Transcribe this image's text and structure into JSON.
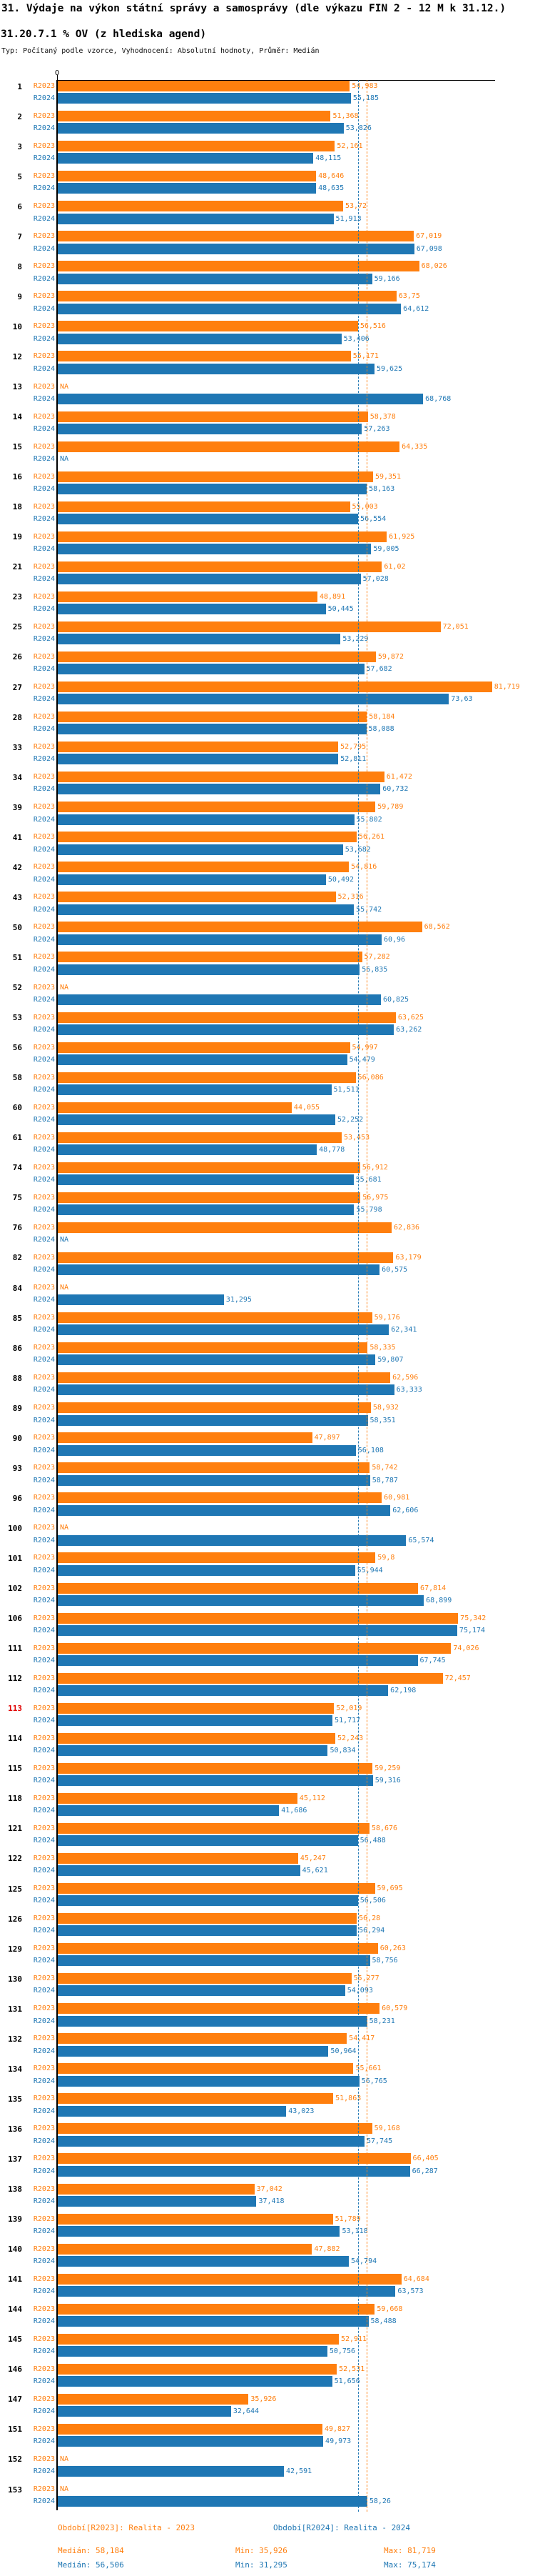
{
  "title": "31. Výdaje na výkon státní správy a samosprávy (dle výkazu FIN 2 - 12 M k 31.12.)",
  "subtitle": "31.20.7.1 % OV (z hlediska agend)",
  "meta_line": "Typ: Počítaný podle vzorce, Vyhodnocení: Absolutní hodnoty, Průměr: Medián",
  "axis": {
    "zero_label": "0"
  },
  "colors": {
    "r2023": "#ff7f0e",
    "r2024": "#1f77b4",
    "highlight_row": "#e00000",
    "axis": "#000000"
  },
  "na_label": "NA",
  "series_row_labels": {
    "r2023": "R2023",
    "r2024": "R2024"
  },
  "chart_data": {
    "type": "bar",
    "orientation": "horizontal",
    "x_axis": {
      "start_tick_label": "0",
      "value_format": "czech decimal comma"
    },
    "series_names": [
      "R2023",
      "R2024"
    ],
    "medians": {
      "r2023": 58.184,
      "r2024": 56.506
    },
    "stats": {
      "r2023": {
        "median": "58,184",
        "min": "35,926",
        "max": "81,719"
      },
      "r2024": {
        "median": "56,506",
        "min": "31,295",
        "max": "75,174"
      }
    },
    "highlighted_ids": [
      "113"
    ],
    "rows": [
      {
        "id": "1",
        "r2023": "54,983",
        "r2024": "55,185"
      },
      {
        "id": "2",
        "r2023": "51,368",
        "r2024": "53,826"
      },
      {
        "id": "3",
        "r2023": "52,161",
        "r2024": "48,115"
      },
      {
        "id": "5",
        "r2023": "48,646",
        "r2024": "48,635"
      },
      {
        "id": "6",
        "r2023": "53,72",
        "r2024": "51,913"
      },
      {
        "id": "7",
        "r2023": "67,019",
        "r2024": "67,098"
      },
      {
        "id": "8",
        "r2023": "68,026",
        "r2024": "59,166"
      },
      {
        "id": "9",
        "r2023": "63,75",
        "r2024": "64,612"
      },
      {
        "id": "10",
        "r2023": "56,516",
        "r2024": "53,406"
      },
      {
        "id": "12",
        "r2023": "55,171",
        "r2024": "59,625"
      },
      {
        "id": "13",
        "r2023": null,
        "r2024": "68,768"
      },
      {
        "id": "14",
        "r2023": "58,378",
        "r2024": "57,263"
      },
      {
        "id": "15",
        "r2023": "64,335",
        "r2024": null
      },
      {
        "id": "16",
        "r2023": "59,351",
        "r2024": "58,163"
      },
      {
        "id": "18",
        "r2023": "55,003",
        "r2024": "56,554"
      },
      {
        "id": "19",
        "r2023": "61,925",
        "r2024": "59,005"
      },
      {
        "id": "21",
        "r2023": "61,02",
        "r2024": "57,028"
      },
      {
        "id": "23",
        "r2023": "48,891",
        "r2024": "50,445"
      },
      {
        "id": "25",
        "r2023": "72,051",
        "r2024": "53,229"
      },
      {
        "id": "26",
        "r2023": "59,872",
        "r2024": "57,682"
      },
      {
        "id": "27",
        "r2023": "81,719",
        "r2024": "73,63"
      },
      {
        "id": "28",
        "r2023": "58,184",
        "r2024": "58,088"
      },
      {
        "id": "33",
        "r2023": "52,795",
        "r2024": "52,811"
      },
      {
        "id": "34",
        "r2023": "61,472",
        "r2024": "60,732"
      },
      {
        "id": "39",
        "r2023": "59,789",
        "r2024": "55,802"
      },
      {
        "id": "41",
        "r2023": "56,261",
        "r2024": "53,682"
      },
      {
        "id": "42",
        "r2023": "54,816",
        "r2024": "50,492"
      },
      {
        "id": "43",
        "r2023": "52,316",
        "r2024": "55,742"
      },
      {
        "id": "50",
        "r2023": "68,562",
        "r2024": "60,96"
      },
      {
        "id": "51",
        "r2023": "57,282",
        "r2024": "56,835"
      },
      {
        "id": "52",
        "r2023": null,
        "r2024": "60,825"
      },
      {
        "id": "53",
        "r2023": "63,625",
        "r2024": "63,262"
      },
      {
        "id": "56",
        "r2023": "54,997",
        "r2024": "54,479"
      },
      {
        "id": "58",
        "r2023": "56,086",
        "r2024": "51,511"
      },
      {
        "id": "60",
        "r2023": "44,055",
        "r2024": "52,252"
      },
      {
        "id": "61",
        "r2023": "53,453",
        "r2024": "48,778"
      },
      {
        "id": "74",
        "r2023": "56,912",
        "r2024": "55,681"
      },
      {
        "id": "75",
        "r2023": "56,975",
        "r2024": "55,798"
      },
      {
        "id": "76",
        "r2023": "62,836",
        "r2024": null
      },
      {
        "id": "82",
        "r2023": "63,179",
        "r2024": "60,575"
      },
      {
        "id": "84",
        "r2023": null,
        "r2024": "31,295"
      },
      {
        "id": "85",
        "r2023": "59,176",
        "r2024": "62,341"
      },
      {
        "id": "86",
        "r2023": "58,335",
        "r2024": "59,807"
      },
      {
        "id": "88",
        "r2023": "62,596",
        "r2024": "63,333"
      },
      {
        "id": "89",
        "r2023": "58,932",
        "r2024": "58,351"
      },
      {
        "id": "90",
        "r2023": "47,897",
        "r2024": "56,108"
      },
      {
        "id": "93",
        "r2023": "58,742",
        "r2024": "58,787"
      },
      {
        "id": "96",
        "r2023": "60,981",
        "r2024": "62,606"
      },
      {
        "id": "100",
        "r2023": null,
        "r2024": "65,574"
      },
      {
        "id": "101",
        "r2023": "59,8",
        "r2024": "55,944"
      },
      {
        "id": "102",
        "r2023": "67,814",
        "r2024": "68,899"
      },
      {
        "id": "106",
        "r2023": "75,342",
        "r2024": "75,174"
      },
      {
        "id": "111",
        "r2023": "74,026",
        "r2024": "67,745"
      },
      {
        "id": "112",
        "r2023": "72,457",
        "r2024": "62,198"
      },
      {
        "id": "113",
        "r2023": "52,019",
        "r2024": "51,717"
      },
      {
        "id": "114",
        "r2023": "52,243",
        "r2024": "50,834"
      },
      {
        "id": "115",
        "r2023": "59,259",
        "r2024": "59,316"
      },
      {
        "id": "118",
        "r2023": "45,112",
        "r2024": "41,686"
      },
      {
        "id": "121",
        "r2023": "58,676",
        "r2024": "56,488"
      },
      {
        "id": "122",
        "r2023": "45,247",
        "r2024": "45,621"
      },
      {
        "id": "125",
        "r2023": "59,695",
        "r2024": "56,506"
      },
      {
        "id": "126",
        "r2023": "56,28",
        "r2024": "56,294"
      },
      {
        "id": "129",
        "r2023": "60,263",
        "r2024": "58,756"
      },
      {
        "id": "130",
        "r2023": "55,277",
        "r2024": "54,093"
      },
      {
        "id": "131",
        "r2023": "60,579",
        "r2024": "58,231"
      },
      {
        "id": "132",
        "r2023": "54,417",
        "r2024": "50,964"
      },
      {
        "id": "134",
        "r2023": "55,661",
        "r2024": "56,765"
      },
      {
        "id": "135",
        "r2023": "51,863",
        "r2024": "43,023"
      },
      {
        "id": "136",
        "r2023": "59,168",
        "r2024": "57,745"
      },
      {
        "id": "137",
        "r2023": "66,405",
        "r2024": "66,287"
      },
      {
        "id": "138",
        "r2023": "37,042",
        "r2024": "37,418"
      },
      {
        "id": "139",
        "r2023": "51,789",
        "r2024": "53,118"
      },
      {
        "id": "140",
        "r2023": "47,882",
        "r2024": "54,794"
      },
      {
        "id": "141",
        "r2023": "64,684",
        "r2024": "63,573"
      },
      {
        "id": "144",
        "r2023": "59,668",
        "r2024": "58,488"
      },
      {
        "id": "145",
        "r2023": "52,911",
        "r2024": "50,756"
      },
      {
        "id": "146",
        "r2023": "52,531",
        "r2024": "51,656"
      },
      {
        "id": "147",
        "r2023": "35,926",
        "r2024": "32,644"
      },
      {
        "id": "151",
        "r2023": "49,827",
        "r2024": "49,973"
      },
      {
        "id": "152",
        "r2023": null,
        "r2024": "42,591"
      },
      {
        "id": "153",
        "r2023": null,
        "r2024": "58,26"
      }
    ]
  },
  "legend": {
    "r2023_label": "Období[R2023]: Realita - 2023",
    "r2024_label": "Období[R2024]: Realita - 2024",
    "r2023_median": "Medián: 58,184",
    "r2023_min": "Min: 35,926",
    "r2023_max": "Max: 81,719",
    "r2024_median": "Medián: 56,506",
    "r2024_min": "Min: 31,295",
    "r2024_max": "Max: 75,174"
  }
}
